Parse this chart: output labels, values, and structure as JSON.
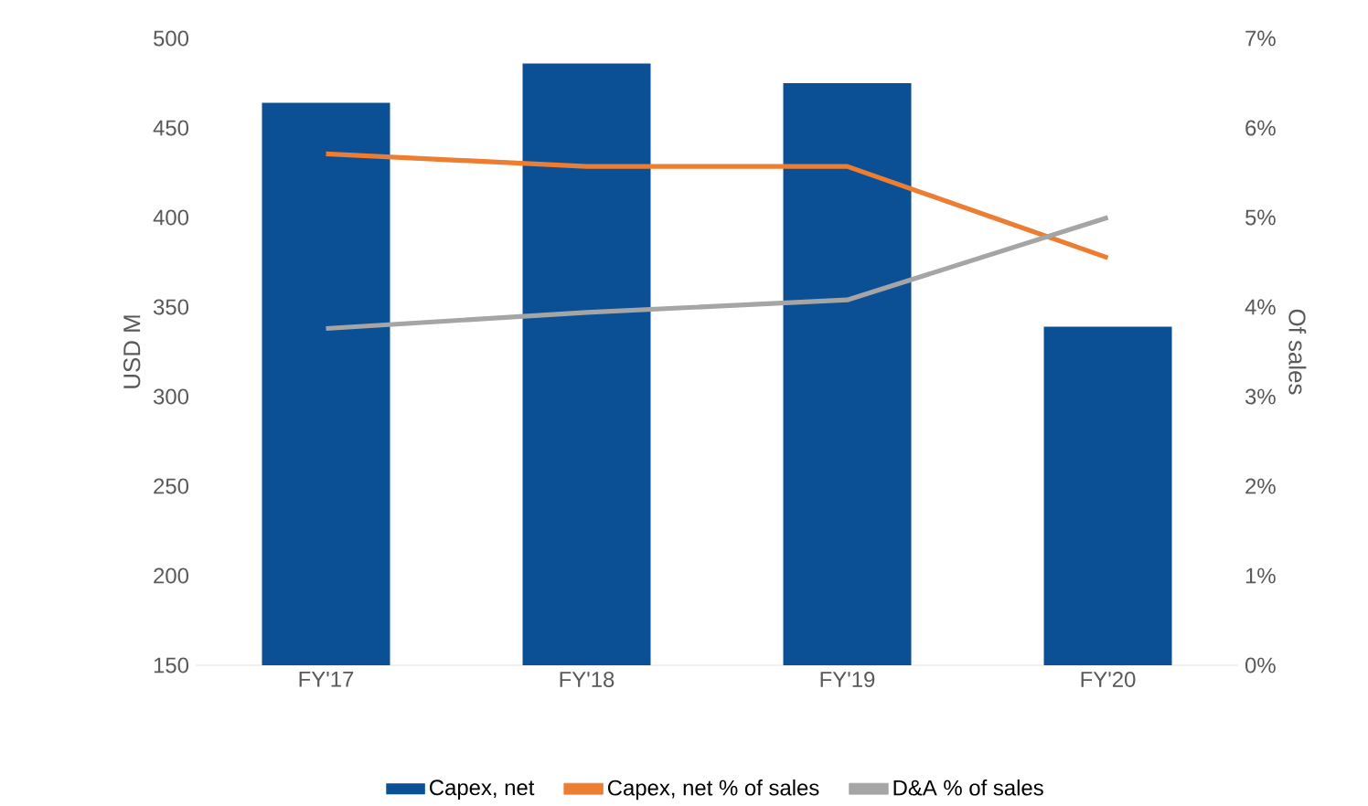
{
  "chart_data": {
    "type": "bar",
    "categories": [
      "FY'17",
      "FY'18",
      "FY'19",
      "FY'20"
    ],
    "series": [
      {
        "name": "Capex, net",
        "color": "#0b4f94",
        "values": [
          464,
          486,
          475,
          339
        ]
      },
      {
        "name": "Capex, net % of sales",
        "type": "line",
        "axis": "y2",
        "color": "#ed7d31",
        "values": [
          5.71,
          5.57,
          5.57,
          4.55
        ]
      },
      {
        "name": "D&A % of sales",
        "type": "line",
        "axis": "y2",
        "color": "#a5a5a5",
        "values": [
          3.76,
          3.94,
          4.08,
          5.0
        ]
      }
    ],
    "ylabel": "USD M",
    "y2label": "Of sales",
    "ylim": [
      150,
      500
    ],
    "yticks": [
      150,
      200,
      250,
      300,
      350,
      400,
      450,
      500
    ],
    "y2lim": [
      0,
      7
    ],
    "y2ticks": [
      {
        "value": 0,
        "label": "0%"
      },
      {
        "value": 1,
        "label": "1%"
      },
      {
        "value": 2,
        "label": "2%"
      },
      {
        "value": 3,
        "label": "3%"
      },
      {
        "value": 4,
        "label": "4%"
      },
      {
        "value": 5,
        "label": "5%"
      },
      {
        "value": 6,
        "label": "6%"
      },
      {
        "value": 7,
        "label": "7%"
      }
    ],
    "legend": "bottom",
    "grid": false
  }
}
